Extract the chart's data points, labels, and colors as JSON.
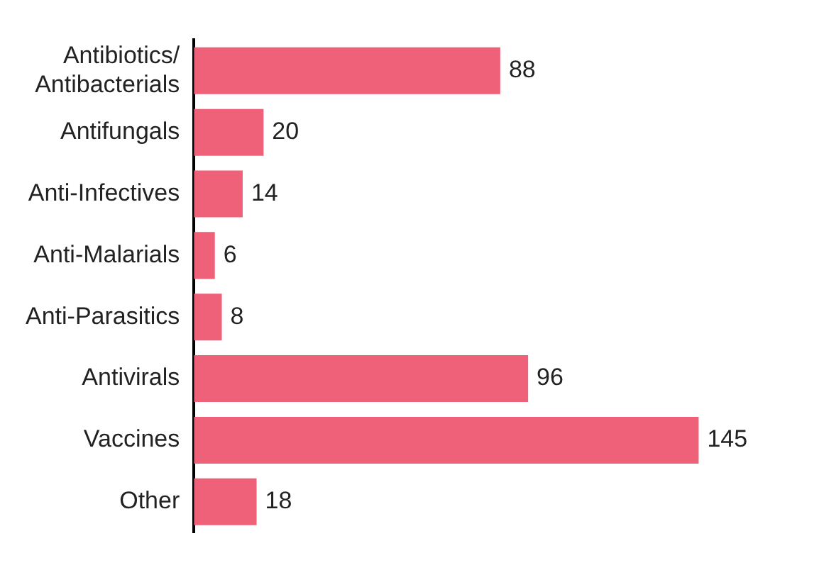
{
  "chart_data": {
    "type": "bar",
    "orientation": "horizontal",
    "categories": [
      "Antibiotics/\nAntibacterials",
      "Antifungals",
      "Anti-Infectives",
      "Anti-Malarials",
      "Anti-Parasitics",
      "Antivirals",
      "Vaccines",
      "Other"
    ],
    "values": [
      88,
      20,
      14,
      6,
      8,
      96,
      145,
      18
    ],
    "color": "#ef6079",
    "data_labels": true,
    "legend": false,
    "tick_labels": "y"
  }
}
